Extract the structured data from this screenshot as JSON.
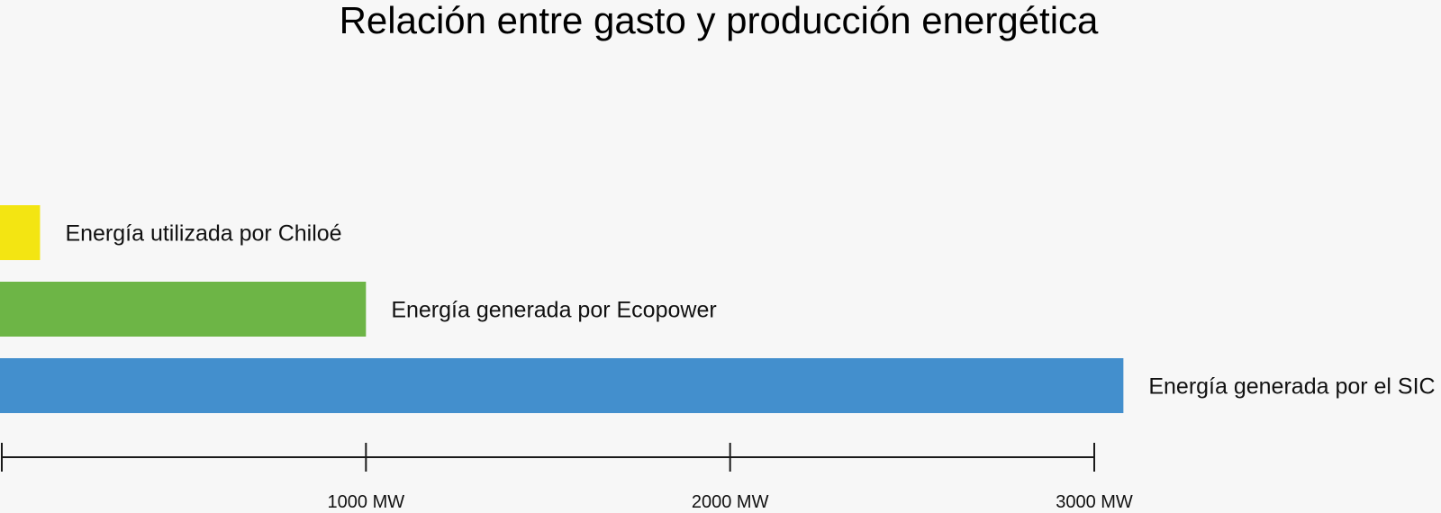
{
  "chart_data": {
    "type": "bar",
    "orientation": "horizontal",
    "title": "Relación entre gasto y producción energética",
    "categories": [
      "Energía utilizada por Chiloé",
      "Energía generada por Ecopower",
      "Energía generada por el SIC"
    ],
    "values": [
      105,
      1000,
      3080
    ],
    "colors": [
      "#f3e512",
      "#6db546",
      "#438fcd"
    ],
    "xlim": [
      0,
      3000
    ],
    "xticks": [
      {
        "value": 0,
        "label": ""
      },
      {
        "value": 1000,
        "label": "1000 MW"
      },
      {
        "value": 2000,
        "label": "2000 MW"
      },
      {
        "value": 3000,
        "label": "3000 MW"
      }
    ],
    "xlabel": "",
    "ylabel": "",
    "grid": false,
    "legend": "none"
  },
  "colors": {
    "background": "#f7f7f7",
    "axis": "#1a1a1a",
    "text": "#111111"
  }
}
